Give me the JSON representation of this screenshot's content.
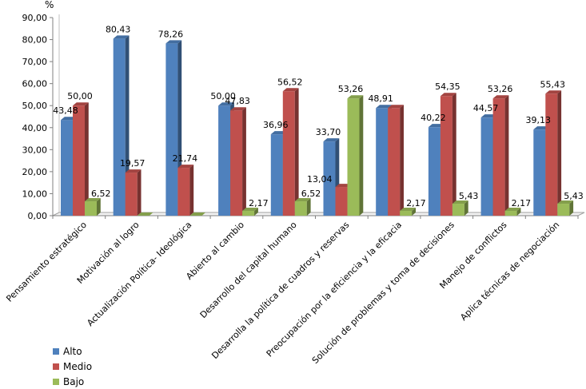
{
  "chart_data": {
    "type": "bar",
    "unit": "%",
    "ylim": [
      0,
      90
    ],
    "yticks": [
      "0,00",
      "10,00",
      "20,00",
      "30,00",
      "40,00",
      "50,00",
      "60,00",
      "70,00",
      "80,00",
      "90,00"
    ],
    "categories": [
      "Pensamiento estratégico",
      "Motivación al logro",
      "Actualización Política- Ideológica",
      "Abierto al cambio",
      "Desarrollo del capital humano",
      "Desarrolla la política de cuadros y reservas",
      "Preocupación por la eficiencia y la eficacia",
      "Solución de problemas y toma de decisiones",
      "Manejo de conflictos",
      "Aplica técnicas de negociación"
    ],
    "series": [
      {
        "name": "Alto",
        "color": "#4f81bd",
        "values": [
          43.48,
          80.43,
          78.26,
          50.0,
          36.96,
          33.7,
          48.91,
          40.22,
          44.57,
          39.13
        ],
        "labels": [
          "43,48",
          "80,43",
          "78,26",
          "50,00",
          "36,96",
          "33,70",
          "48,91",
          "40,22",
          "44,57",
          "39,13"
        ]
      },
      {
        "name": "Medio",
        "color": "#c0504d",
        "values": [
          50.0,
          19.57,
          21.74,
          47.83,
          56.52,
          13.04,
          48.91,
          54.35,
          53.26,
          55.43
        ],
        "labels": [
          "50,00",
          "19,57",
          "21,74",
          "47,83",
          "56,52",
          "13,04",
          "",
          "54,35",
          "53,26",
          "55,43"
        ]
      },
      {
        "name": "Bajo",
        "color": "#9bbb59",
        "values": [
          6.52,
          0,
          0,
          2.17,
          6.52,
          53.26,
          2.17,
          5.43,
          2.17,
          5.43
        ],
        "labels": [
          "6,52",
          "",
          "",
          "2,17",
          "6,52",
          "53,26",
          "2,17",
          "5,43",
          "2,17",
          "5,43"
        ]
      }
    ],
    "legend_position": "bottom-left",
    "grid": false
  }
}
